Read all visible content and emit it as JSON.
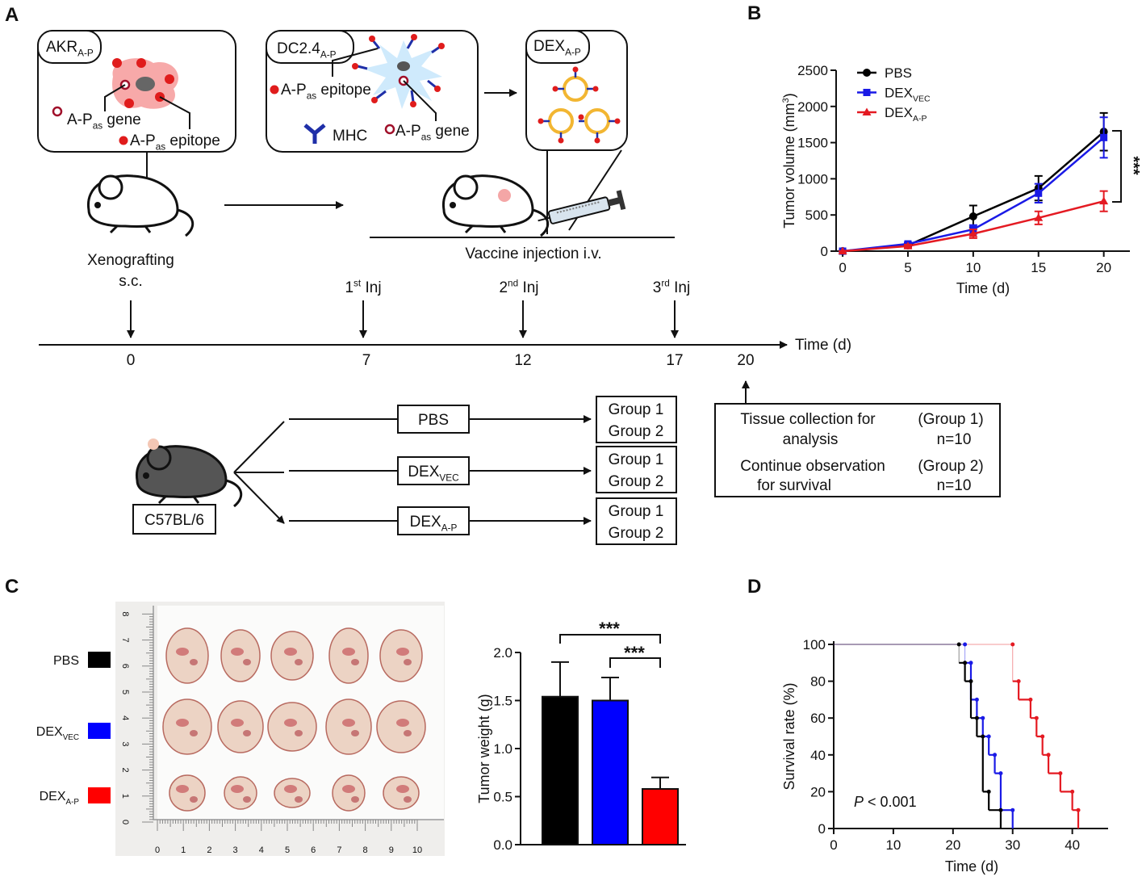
{
  "panel_labels": [
    "A",
    "B",
    "C",
    "D"
  ],
  "schematic": {
    "akr_box": {
      "title": [
        "AKR",
        "A-P"
      ],
      "gene": [
        "A-P",
        "as",
        " gene"
      ],
      "epitope": [
        "A-P",
        "as",
        " epitope"
      ]
    },
    "dc_box": {
      "title": [
        "DC2.4",
        "A-P"
      ],
      "epitope": [
        "A-P",
        "as",
        " epitope"
      ],
      "mhc": "MHC",
      "gene": [
        "A-P",
        "as",
        " gene"
      ]
    },
    "dex_box": {
      "title": [
        "DEX",
        "A-P"
      ]
    },
    "xenografting": [
      "Xenografting",
      "s.c."
    ],
    "vaccine": "Vaccine injection i.v.",
    "injections": [
      [
        "1",
        "st",
        " Inj"
      ],
      [
        "2",
        "nd",
        " Inj"
      ],
      [
        "3",
        "rd",
        " Inj"
      ]
    ],
    "timeline": {
      "days": [
        0,
        7,
        12,
        17,
        20
      ],
      "label": "Time (d)"
    },
    "strain": "C57BL/6",
    "treatments": [
      [
        "PBS"
      ],
      [
        "DEX",
        "VEC"
      ],
      [
        "DEX",
        "A-P"
      ]
    ],
    "groups": [
      [
        "Group 1",
        "Group 2"
      ],
      [
        "Group 1",
        "Group 2"
      ],
      [
        "Group 1",
        "Group 2"
      ]
    ],
    "tissue": [
      [
        "Tissue collection for",
        "analysis"
      ],
      [
        "(Group 1)",
        "n=10"
      ],
      [
        "Continue observation",
        "for survival"
      ],
      [
        "(Group 2)",
        "n=10"
      ]
    ]
  },
  "photo": {
    "ruler_x": [
      0,
      1,
      2,
      3,
      4,
      5,
      6,
      7,
      8,
      9,
      10
    ],
    "ruler_y": [
      0,
      1,
      2,
      3,
      4,
      5,
      6,
      7,
      8
    ]
  },
  "chart_data": [
    {
      "type": "line",
      "x_label": "Time (d)",
      "y_label": [
        "Tumor volume (mm",
        "3",
        ")"
      ],
      "x": [
        0,
        5,
        10,
        15,
        20
      ],
      "xlim": [
        -0.5,
        22
      ],
      "xticks": [
        0,
        5,
        10,
        15,
        20
      ],
      "ylim": [
        0,
        2500
      ],
      "yticks": [
        0,
        500,
        1000,
        1500,
        2000,
        2500
      ],
      "series": [
        {
          "name": [
            "PBS"
          ],
          "color": "#000000",
          "marker": "circle",
          "values": [
            0,
            80,
            480,
            870,
            1650
          ],
          "errors": [
            0,
            20,
            150,
            170,
            260
          ]
        },
        {
          "name": [
            "DEX",
            "VEC"
          ],
          "color": "#1a1ae6",
          "marker": "square",
          "values": [
            0,
            100,
            300,
            800,
            1570
          ],
          "errors": [
            0,
            20,
            60,
            130,
            280
          ]
        },
        {
          "name": [
            "DEX",
            "A-P"
          ],
          "color": "#e41a22",
          "marker": "triangle",
          "values": [
            0,
            70,
            240,
            460,
            690
          ],
          "errors": [
            0,
            20,
            60,
            90,
            140
          ]
        }
      ],
      "annotation": "***"
    },
    {
      "type": "bar",
      "y_label": "Tumor weight (g)",
      "legend_labels": [
        [
          "PBS"
        ],
        [
          "DEX",
          "VEC"
        ],
        [
          "DEX",
          "A-P"
        ]
      ],
      "values": [
        1.54,
        1.5,
        0.58
      ],
      "errors": [
        0.36,
        0.24,
        0.12
      ],
      "colors": [
        "#000000",
        "#0000ff",
        "#ff0000"
      ],
      "ylim": [
        0,
        2.0
      ],
      "yticks": [
        {
          "value": 0,
          "label": "0.0"
        },
        {
          "value": 0.5,
          "label": "0.5"
        },
        {
          "value": 1,
          "label": "1.0"
        },
        {
          "value": 1.5,
          "label": "1.5"
        },
        {
          "value": 2,
          "label": "2.0"
        }
      ],
      "annotations": [
        "***",
        "***"
      ]
    },
    {
      "type": "step",
      "x_label": "Time (d)",
      "y_label": "Survival rate (%)",
      "xlim": [
        0,
        46
      ],
      "xticks": [
        0,
        10,
        20,
        30,
        40
      ],
      "ylim": [
        0,
        100
      ],
      "yticks": [
        0,
        20,
        40,
        60,
        80,
        100
      ],
      "series": [
        {
          "color": "#e41a22",
          "x": [
            0,
            30,
            31,
            33,
            34,
            35,
            36,
            38,
            40,
            41
          ],
          "values": [
            100,
            80,
            70,
            60,
            50,
            40,
            30,
            20,
            10,
            0
          ]
        },
        {
          "color": "#1a1ae6",
          "x": [
            0,
            22,
            23,
            24,
            25,
            26,
            27,
            28,
            30
          ],
          "values": [
            100,
            90,
            70,
            60,
            50,
            40,
            30,
            10,
            0
          ]
        },
        {
          "color": "#000000",
          "x": [
            0,
            21,
            22,
            23,
            24,
            25,
            26,
            28
          ],
          "values": [
            100,
            90,
            80,
            60,
            50,
            20,
            10,
            0
          ]
        }
      ],
      "annotation": {
        "italic": "P",
        "text": " < 0.001"
      }
    }
  ]
}
